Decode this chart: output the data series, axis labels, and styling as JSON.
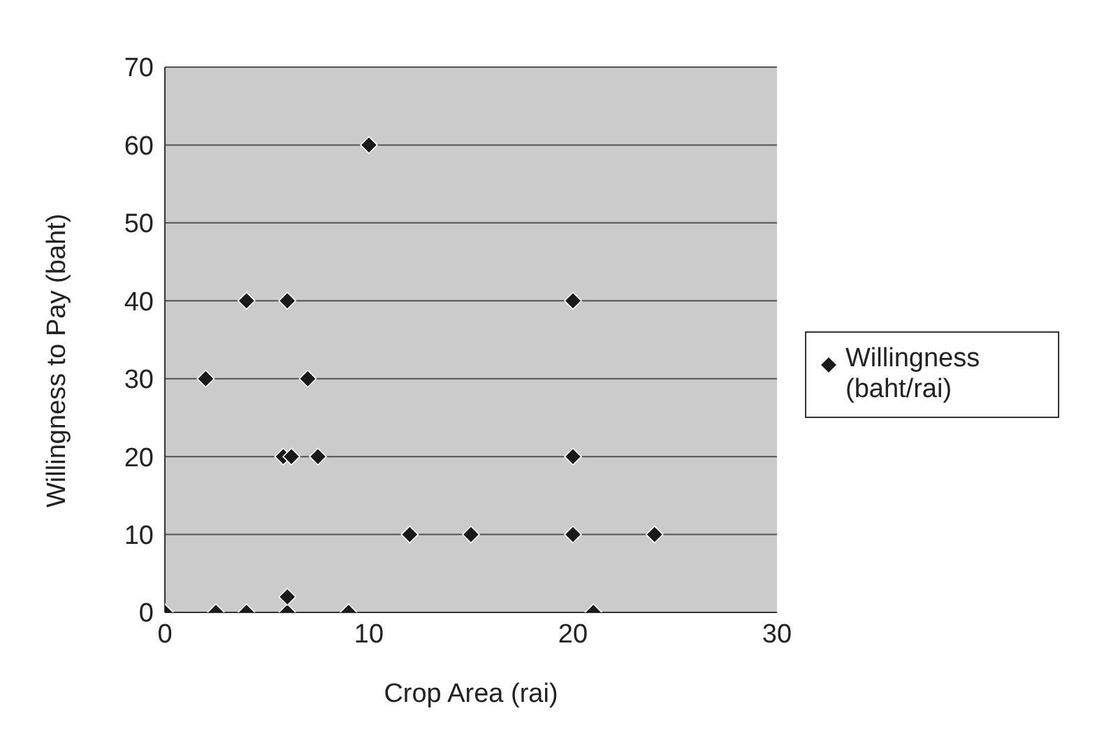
{
  "chart_data": {
    "type": "scatter",
    "xlabel": "Crop Area (rai)",
    "ylabel": "Willingness to Pay (baht)",
    "x": [
      0,
      2.5,
      4,
      6,
      9,
      21,
      6,
      10,
      4,
      6,
      2,
      7,
      5.8,
      6.2,
      7.5,
      12,
      20,
      20,
      15,
      20,
      24
    ],
    "series": [
      {
        "name": "Willingness (baht/rai)",
        "color": "#1a1a1a",
        "values": [
          0,
          0,
          0,
          0,
          0,
          0,
          2,
          60,
          40,
          40,
          30,
          30,
          20,
          20,
          20,
          10,
          40,
          20,
          10,
          10,
          10
        ]
      }
    ],
    "xlim": [
      0,
      30
    ],
    "xticks": [
      0,
      10,
      20,
      30
    ],
    "ylim": [
      0,
      70
    ],
    "yticks": [
      0,
      10,
      20,
      30,
      40,
      50,
      60,
      70
    ],
    "grid": "y",
    "legend": "right",
    "marker": "diamond"
  }
}
